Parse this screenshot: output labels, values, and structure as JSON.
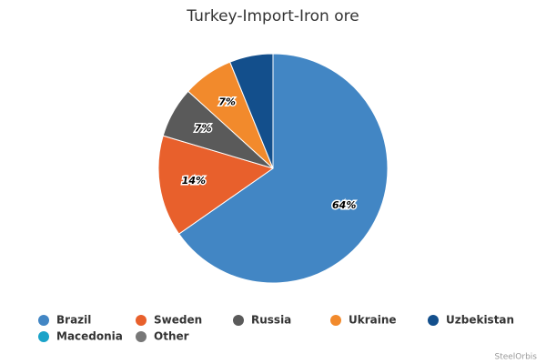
{
  "chart_data": {
    "type": "pie",
    "title": "Turkey-Import-Iron ore",
    "categories": [
      "Brazil",
      "Sweden",
      "Russia",
      "Ukraine",
      "Uzbekistan",
      "Macedonia",
      "Other"
    ],
    "values": [
      64,
      14,
      7,
      7,
      6,
      0,
      0
    ],
    "value_labels": [
      "64%",
      "14%",
      "7%",
      "7%",
      null,
      null,
      null
    ],
    "colors": [
      "#4286c4",
      "#e8602c",
      "#5a5a5a",
      "#f28a2c",
      "#134f8c",
      "#1aa3c9",
      "#777777"
    ],
    "legend": "bottom",
    "credit": "SteelOrbis"
  }
}
